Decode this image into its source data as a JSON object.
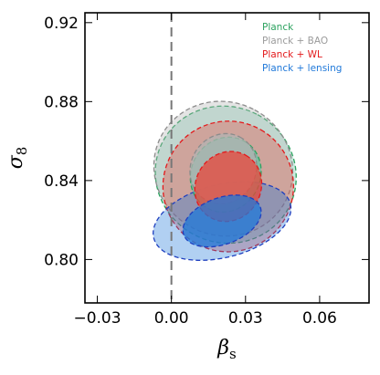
{
  "chart_data": {
    "type": "contour",
    "xlabel": "β",
    "xlabel_sub": "s",
    "ylabel": "σ",
    "ylabel_sub": "8",
    "xlim": [
      -0.035,
      0.08
    ],
    "ylim": [
      0.778,
      0.925
    ],
    "xticks": [
      -0.03,
      0.0,
      0.03,
      0.06
    ],
    "xtick_labels": [
      "−0.03",
      "0.00",
      "0.03",
      "0.06"
    ],
    "yticks": [
      0.8,
      0.84,
      0.88,
      0.92
    ],
    "ytick_labels": [
      "0.80",
      "0.84",
      "0.88",
      "0.92"
    ],
    "reference_line": {
      "x": 0.0,
      "style": "dashed"
    },
    "legend_position": "top-right",
    "series": [
      {
        "name": "Planck",
        "color": "#2ca25f",
        "fill": "#66c2a4",
        "center": [
          0.022,
          0.843
        ],
        "contours": {
          "inner": {
            "rx": 0.0155,
            "ry": 0.0175,
            "angle": 62
          },
          "outer": {
            "rx": 0.0275,
            "ry": 0.036,
            "angle": 62
          }
        }
      },
      {
        "name": "Planck + BAO",
        "color": "#8c8c8c",
        "fill": "#b3b3b3",
        "center": [
          0.021,
          0.846
        ],
        "contours": {
          "inner": {
            "rx": 0.0145,
            "ry": 0.0165,
            "angle": 62
          },
          "outer": {
            "rx": 0.027,
            "ry": 0.0355,
            "angle": 62
          }
        }
      },
      {
        "name": "Planck + WL",
        "color": "#e31a1c",
        "fill": "#e8473b",
        "center": [
          0.023,
          0.837
        ],
        "contours": {
          "inner": {
            "rx": 0.0145,
            "ry": 0.0165,
            "angle": 60
          },
          "outer": {
            "rx": 0.0265,
            "ry": 0.033,
            "angle": 60
          }
        }
      },
      {
        "name": "Planck + lensing",
        "color": "#1f3fbf",
        "fill": "#1f78d9",
        "center": [
          0.0205,
          0.8195
        ],
        "contours": {
          "inner": {
            "rx": 0.0165,
            "ry": 0.0118,
            "angle": 20
          },
          "outer": {
            "rx": 0.0285,
            "ry": 0.0185,
            "angle": 14
          }
        }
      }
    ]
  },
  "colors": {
    "legend": [
      "#2ca25f",
      "#9b9b9b",
      "#e31a1c",
      "#1f78d9"
    ]
  }
}
